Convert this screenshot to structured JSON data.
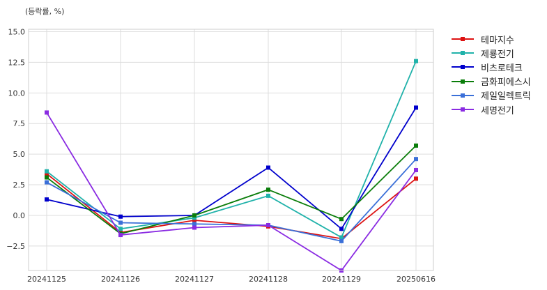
{
  "unit_label": "(등락률, %)",
  "chart_data": {
    "type": "line",
    "ylabel": "(등락률, %)",
    "categories": [
      "20241125",
      "20241126",
      "20241127",
      "20241128",
      "20241129",
      "20250616"
    ],
    "ylim": [
      -4.5,
      15.2
    ],
    "yticks": [
      -2.5,
      0.0,
      2.5,
      5.0,
      7.5,
      10.0,
      12.5,
      15.0
    ],
    "ytick_labels": [
      "−2.5",
      "0.0",
      "2.5",
      "5.0",
      "7.5",
      "10.0",
      "12.5",
      "15.0"
    ],
    "grid": true,
    "legend": "outside-right",
    "series": [
      {
        "name": "테마지수",
        "color": "#dd1111",
        "values": [
          3.4,
          -1.4,
          -0.4,
          -0.9,
          -1.9,
          3.0
        ]
      },
      {
        "name": "제룡전기",
        "color": "#20b2aa",
        "values": [
          3.6,
          -1.1,
          -0.2,
          1.6,
          -1.8,
          12.6
        ]
      },
      {
        "name": "비츠로테크",
        "color": "#0000cc",
        "values": [
          1.3,
          -0.1,
          0.0,
          3.9,
          -1.1,
          8.8
        ]
      },
      {
        "name": "금화피에스시",
        "color": "#0a7d0a",
        "values": [
          3.1,
          -1.5,
          0.0,
          2.1,
          -0.3,
          5.7
        ]
      },
      {
        "name": "제일일렉트릭",
        "color": "#3a6fd8",
        "values": [
          2.7,
          -0.6,
          -0.7,
          -0.8,
          -2.1,
          4.6
        ]
      },
      {
        "name": "세명전기",
        "color": "#8a2be2",
        "values": [
          8.4,
          -1.6,
          -1.0,
          -0.8,
          -4.5,
          3.7
        ]
      }
    ]
  }
}
